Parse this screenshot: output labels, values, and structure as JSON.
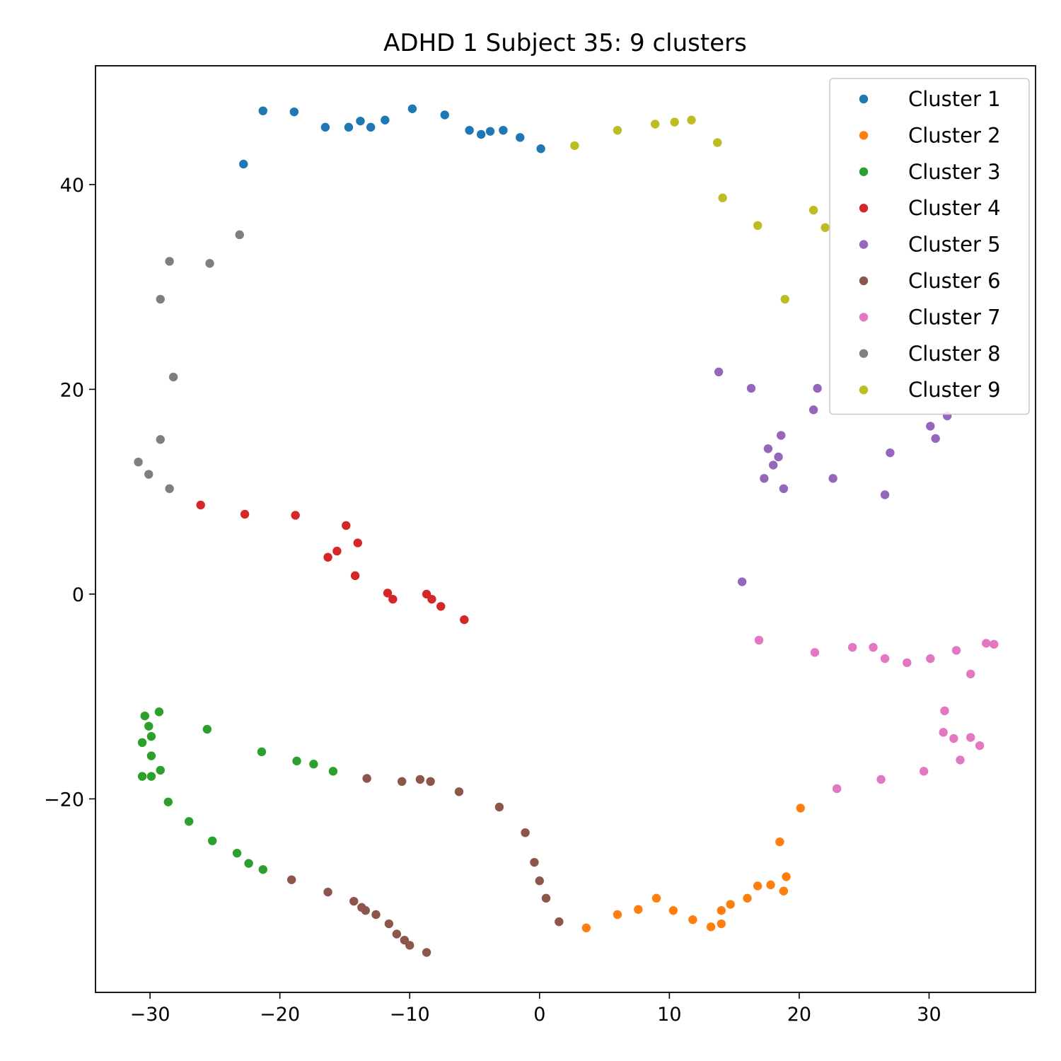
{
  "chart_data": {
    "type": "scatter",
    "title": "ADHD 1 Subject 35: 9 clusters",
    "xlabel": "",
    "ylabel": "",
    "xlim": [
      -34.2,
      38.2
    ],
    "ylim": [
      -38.9,
      51.6
    ],
    "xticks": [
      -30,
      -20,
      -10,
      0,
      10,
      20,
      30
    ],
    "yticks": [
      -20,
      0,
      20,
      40
    ],
    "grid": false,
    "legend_position": "top-right",
    "series": [
      {
        "name": "Cluster 1",
        "color": "#1f77b4",
        "points": [
          [
            -21.3,
            47.2
          ],
          [
            -18.9,
            47.1
          ],
          [
            -16.5,
            45.6
          ],
          [
            -14.7,
            45.6
          ],
          [
            -13.8,
            46.2
          ],
          [
            -13.0,
            45.6
          ],
          [
            -11.9,
            46.3
          ],
          [
            -9.8,
            47.4
          ],
          [
            -7.3,
            46.8
          ],
          [
            -5.4,
            45.3
          ],
          [
            -4.5,
            44.9
          ],
          [
            -3.8,
            45.2
          ],
          [
            -2.8,
            45.3
          ],
          [
            -1.5,
            44.6
          ],
          [
            0.1,
            43.5
          ],
          [
            -22.8,
            42.0
          ]
        ]
      },
      {
        "name": "Cluster 2",
        "color": "#ff7f0e",
        "points": [
          [
            3.6,
            -32.6
          ],
          [
            6.0,
            -31.3
          ],
          [
            7.6,
            -30.8
          ],
          [
            9.0,
            -29.7
          ],
          [
            10.3,
            -30.9
          ],
          [
            11.8,
            -31.8
          ],
          [
            13.2,
            -32.5
          ],
          [
            14.0,
            -30.9
          ],
          [
            14.0,
            -32.2
          ],
          [
            14.7,
            -30.3
          ],
          [
            16.0,
            -29.7
          ],
          [
            16.8,
            -28.5
          ],
          [
            17.8,
            -28.4
          ],
          [
            18.8,
            -29.0
          ],
          [
            19.0,
            -27.6
          ],
          [
            18.5,
            -24.2
          ],
          [
            20.1,
            -20.9
          ]
        ]
      },
      {
        "name": "Cluster 3",
        "color": "#2ca02c",
        "points": [
          [
            -30.4,
            -11.9
          ],
          [
            -29.3,
            -11.5
          ],
          [
            -30.1,
            -12.9
          ],
          [
            -29.9,
            -13.9
          ],
          [
            -30.6,
            -14.5
          ],
          [
            -29.9,
            -15.8
          ],
          [
            -29.2,
            -17.2
          ],
          [
            -30.6,
            -17.8
          ],
          [
            -29.9,
            -17.8
          ],
          [
            -25.6,
            -13.2
          ],
          [
            -21.4,
            -15.4
          ],
          [
            -18.7,
            -16.3
          ],
          [
            -17.4,
            -16.6
          ],
          [
            -15.9,
            -17.3
          ],
          [
            -28.6,
            -20.3
          ],
          [
            -27.0,
            -22.2
          ],
          [
            -25.2,
            -24.1
          ],
          [
            -23.3,
            -25.3
          ],
          [
            -22.4,
            -26.3
          ],
          [
            -21.3,
            -26.9
          ]
        ]
      },
      {
        "name": "Cluster 4",
        "color": "#d62728",
        "points": [
          [
            -26.1,
            8.7
          ],
          [
            -22.7,
            7.8
          ],
          [
            -18.8,
            7.7
          ],
          [
            -14.9,
            6.7
          ],
          [
            -14.0,
            5.0
          ],
          [
            -15.6,
            4.2
          ],
          [
            -16.3,
            3.6
          ],
          [
            -14.2,
            1.8
          ],
          [
            -11.7,
            0.1
          ],
          [
            -11.3,
            -0.5
          ],
          [
            -8.7,
            0.0
          ],
          [
            -8.3,
            -0.5
          ],
          [
            -7.6,
            -1.2
          ],
          [
            -5.8,
            -2.5
          ]
        ]
      },
      {
        "name": "Cluster 5",
        "color": "#9467bd",
        "points": [
          [
            13.8,
            21.7
          ],
          [
            16.3,
            20.1
          ],
          [
            21.4,
            20.1
          ],
          [
            21.1,
            18.0
          ],
          [
            30.1,
            16.4
          ],
          [
            31.4,
            17.4
          ],
          [
            30.5,
            15.2
          ],
          [
            18.6,
            15.5
          ],
          [
            17.6,
            14.2
          ],
          [
            18.4,
            13.4
          ],
          [
            27.0,
            13.8
          ],
          [
            18.0,
            12.6
          ],
          [
            17.3,
            11.3
          ],
          [
            22.6,
            11.3
          ],
          [
            18.8,
            10.3
          ],
          [
            26.6,
            9.7
          ],
          [
            15.6,
            1.2
          ]
        ]
      },
      {
        "name": "Cluster 6",
        "color": "#8c564b",
        "points": [
          [
            -13.3,
            -18.0
          ],
          [
            -10.6,
            -18.3
          ],
          [
            -9.2,
            -18.1
          ],
          [
            -8.4,
            -18.3
          ],
          [
            -6.2,
            -19.3
          ],
          [
            -3.1,
            -20.8
          ],
          [
            -1.1,
            -23.3
          ],
          [
            -0.4,
            -26.2
          ],
          [
            0.0,
            -28.0
          ],
          [
            0.5,
            -29.7
          ],
          [
            1.5,
            -32.0
          ],
          [
            -19.1,
            -27.9
          ],
          [
            -16.3,
            -29.1
          ],
          [
            -14.3,
            -30.0
          ],
          [
            -13.7,
            -30.6
          ],
          [
            -13.4,
            -30.9
          ],
          [
            -12.6,
            -31.3
          ],
          [
            -11.6,
            -32.2
          ],
          [
            -11.0,
            -33.2
          ],
          [
            -10.4,
            -33.8
          ],
          [
            -10.0,
            -34.3
          ],
          [
            -8.7,
            -35.0
          ]
        ]
      },
      {
        "name": "Cluster 7",
        "color": "#e377c2",
        "points": [
          [
            16.9,
            -4.5
          ],
          [
            21.2,
            -5.7
          ],
          [
            24.1,
            -5.2
          ],
          [
            25.7,
            -5.2
          ],
          [
            26.6,
            -6.3
          ],
          [
            28.3,
            -6.7
          ],
          [
            30.1,
            -6.3
          ],
          [
            32.1,
            -5.5
          ],
          [
            34.4,
            -4.8
          ],
          [
            35.0,
            -4.9
          ],
          [
            33.2,
            -7.8
          ],
          [
            31.2,
            -11.4
          ],
          [
            31.1,
            -13.5
          ],
          [
            31.9,
            -14.1
          ],
          [
            33.2,
            -14.0
          ],
          [
            33.9,
            -14.8
          ],
          [
            32.4,
            -16.2
          ],
          [
            29.6,
            -17.3
          ],
          [
            26.3,
            -18.1
          ],
          [
            22.9,
            -19.0
          ]
        ]
      },
      {
        "name": "Cluster 8",
        "color": "#7f7f7f",
        "points": [
          [
            -23.1,
            35.1
          ],
          [
            -28.5,
            32.5
          ],
          [
            -25.4,
            32.3
          ],
          [
            -29.2,
            28.8
          ],
          [
            -28.2,
            21.2
          ],
          [
            -29.2,
            15.1
          ],
          [
            -30.9,
            12.9
          ],
          [
            -30.1,
            11.7
          ],
          [
            -28.5,
            10.3
          ]
        ]
      },
      {
        "name": "Cluster 9",
        "color": "#bcbd22",
        "points": [
          [
            2.7,
            43.8
          ],
          [
            6.0,
            45.3
          ],
          [
            8.9,
            45.9
          ],
          [
            10.4,
            46.1
          ],
          [
            11.7,
            46.3
          ],
          [
            13.7,
            44.1
          ],
          [
            14.1,
            38.7
          ],
          [
            16.8,
            36.0
          ],
          [
            21.1,
            37.5
          ],
          [
            22.0,
            35.8
          ],
          [
            18.9,
            28.8
          ]
        ]
      }
    ]
  }
}
